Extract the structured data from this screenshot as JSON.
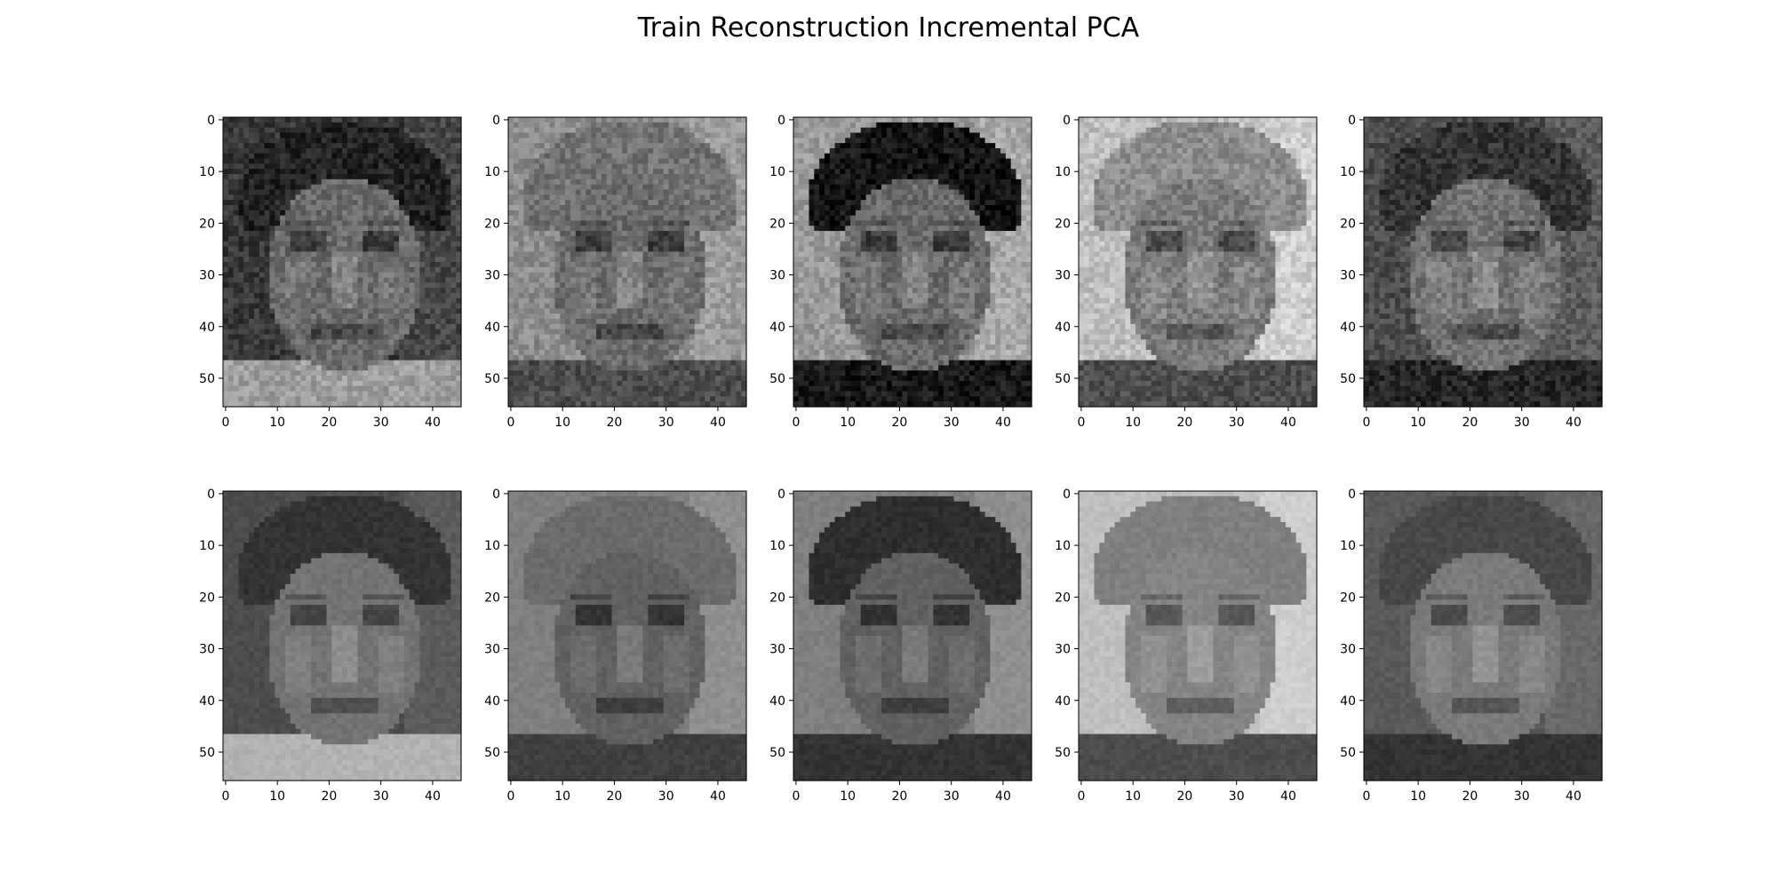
{
  "title": "Train Reconstruction Incremental PCA",
  "chart_data": [
    {
      "type": "heatmap",
      "name": "original-1",
      "row": "original",
      "image_shape": [
        56,
        46
      ],
      "colormap": "gray",
      "xlim": [
        -0.5,
        45.5
      ],
      "ylim": [
        55.5,
        -0.5
      ],
      "xticks": [
        0,
        10,
        20,
        30,
        40
      ],
      "xtick_labels": [
        "0",
        "10",
        "20",
        "30",
        "40"
      ],
      "yticks": [
        0,
        10,
        20,
        30,
        40,
        50
      ],
      "ytick_labels": [
        "0",
        "10",
        "20",
        "30",
        "40",
        "50"
      ],
      "tone": {
        "background": 0.22,
        "hair": 0.14,
        "face": 0.42,
        "clothes": 0.62,
        "blur": false
      }
    },
    {
      "type": "heatmap",
      "name": "original-2",
      "row": "original",
      "image_shape": [
        56,
        46
      ],
      "colormap": "gray",
      "xlim": [
        -0.5,
        45.5
      ],
      "ylim": [
        55.5,
        -0.5
      ],
      "xticks": [
        0,
        10,
        20,
        30,
        40
      ],
      "xtick_labels": [
        "0",
        "10",
        "20",
        "30",
        "40"
      ],
      "yticks": [
        0,
        10,
        20,
        30,
        40,
        50
      ],
      "ytick_labels": [
        "0",
        "10",
        "20",
        "30",
        "40",
        "50"
      ],
      "tone": {
        "background": 0.55,
        "hair": 0.45,
        "face": 0.42,
        "clothes": 0.3,
        "blur": false
      }
    },
    {
      "type": "heatmap",
      "name": "original-3",
      "row": "original",
      "image_shape": [
        56,
        46
      ],
      "colormap": "gray",
      "xlim": [
        -0.5,
        45.5
      ],
      "ylim": [
        55.5,
        -0.5
      ],
      "xticks": [
        0,
        10,
        20,
        30,
        40
      ],
      "xtick_labels": [
        "0",
        "10",
        "20",
        "30",
        "40"
      ],
      "yticks": [
        0,
        10,
        20,
        30,
        40,
        50
      ],
      "ytick_labels": [
        "0",
        "10",
        "20",
        "30",
        "40",
        "50"
      ],
      "tone": {
        "background": 0.6,
        "hair": 0.08,
        "face": 0.42,
        "clothes": 0.1,
        "blur": false
      }
    },
    {
      "type": "heatmap",
      "name": "original-4",
      "row": "original",
      "image_shape": [
        56,
        46
      ],
      "colormap": "gray",
      "xlim": [
        -0.5,
        45.5
      ],
      "ylim": [
        55.5,
        -0.5
      ],
      "xticks": [
        0,
        10,
        20,
        30,
        40
      ],
      "xtick_labels": [
        "0",
        "10",
        "20",
        "30",
        "40"
      ],
      "yticks": [
        0,
        10,
        20,
        30,
        40,
        50
      ],
      "ytick_labels": [
        "0",
        "10",
        "20",
        "30",
        "40",
        "50"
      ],
      "tone": {
        "background": 0.75,
        "hair": 0.55,
        "face": 0.48,
        "clothes": 0.3,
        "blur": false
      }
    },
    {
      "type": "heatmap",
      "name": "original-5",
      "row": "original",
      "image_shape": [
        56,
        46
      ],
      "colormap": "gray",
      "xlim": [
        -0.5,
        45.5
      ],
      "ylim": [
        55.5,
        -0.5
      ],
      "xticks": [
        0,
        10,
        20,
        30,
        40
      ],
      "xtick_labels": [
        "0",
        "10",
        "20",
        "30",
        "40"
      ],
      "yticks": [
        0,
        10,
        20,
        30,
        40,
        50
      ],
      "ytick_labels": [
        "0",
        "10",
        "20",
        "30",
        "40",
        "50"
      ],
      "tone": {
        "background": 0.3,
        "hair": 0.2,
        "face": 0.45,
        "clothes": 0.15,
        "blur": false
      }
    },
    {
      "type": "heatmap",
      "name": "reconstruction-1",
      "row": "reconstruction",
      "image_shape": [
        56,
        46
      ],
      "colormap": "gray",
      "xlim": [
        -0.5,
        45.5
      ],
      "ylim": [
        55.5,
        -0.5
      ],
      "xticks": [
        0,
        10,
        20,
        30,
        40
      ],
      "xtick_labels": [
        "0",
        "10",
        "20",
        "30",
        "40"
      ],
      "yticks": [
        0,
        10,
        20,
        30,
        40,
        50
      ],
      "ytick_labels": [
        "0",
        "10",
        "20",
        "30",
        "40",
        "50"
      ],
      "tone": {
        "background": 0.3,
        "hair": 0.2,
        "face": 0.45,
        "clothes": 0.7,
        "blur": true
      }
    },
    {
      "type": "heatmap",
      "name": "reconstruction-2",
      "row": "reconstruction",
      "image_shape": [
        56,
        46
      ],
      "colormap": "gray",
      "xlim": [
        -0.5,
        45.5
      ],
      "ylim": [
        55.5,
        -0.5
      ],
      "xticks": [
        0,
        10,
        20,
        30,
        40
      ],
      "xtick_labels": [
        "0",
        "10",
        "20",
        "30",
        "40"
      ],
      "yticks": [
        0,
        10,
        20,
        30,
        40,
        50
      ],
      "ytick_labels": [
        "0",
        "10",
        "20",
        "30",
        "40",
        "50"
      ],
      "tone": {
        "background": 0.5,
        "hair": 0.42,
        "face": 0.38,
        "clothes": 0.25,
        "blur": true
      }
    },
    {
      "type": "heatmap",
      "name": "reconstruction-3",
      "row": "reconstruction",
      "image_shape": [
        56,
        46
      ],
      "colormap": "gray",
      "xlim": [
        -0.5,
        45.5
      ],
      "ylim": [
        55.5,
        -0.5
      ],
      "xticks": [
        0,
        10,
        20,
        30,
        40
      ],
      "xtick_labels": [
        "0",
        "10",
        "20",
        "30",
        "40"
      ],
      "yticks": [
        0,
        10,
        20,
        30,
        40,
        50
      ],
      "ytick_labels": [
        "0",
        "10",
        "20",
        "30",
        "40",
        "50"
      ],
      "tone": {
        "background": 0.5,
        "hair": 0.18,
        "face": 0.38,
        "clothes": 0.2,
        "blur": true
      }
    },
    {
      "type": "heatmap",
      "name": "reconstruction-4",
      "row": "reconstruction",
      "image_shape": [
        56,
        46
      ],
      "colormap": "gray",
      "xlim": [
        -0.5,
        45.5
      ],
      "ylim": [
        55.5,
        -0.5
      ],
      "xticks": [
        0,
        10,
        20,
        30,
        40
      ],
      "xtick_labels": [
        "0",
        "10",
        "20",
        "30",
        "40"
      ],
      "yticks": [
        0,
        10,
        20,
        30,
        40,
        50
      ],
      "ytick_labels": [
        "0",
        "10",
        "20",
        "30",
        "40",
        "50"
      ],
      "tone": {
        "background": 0.75,
        "hair": 0.5,
        "face": 0.52,
        "clothes": 0.3,
        "blur": true
      }
    },
    {
      "type": "heatmap",
      "name": "reconstruction-5",
      "row": "reconstruction",
      "image_shape": [
        56,
        46
      ],
      "colormap": "gray",
      "xlim": [
        -0.5,
        45.5
      ],
      "ylim": [
        55.5,
        -0.5
      ],
      "xticks": [
        0,
        10,
        20,
        30,
        40
      ],
      "xtick_labels": [
        "0",
        "10",
        "20",
        "30",
        "40"
      ],
      "yticks": [
        0,
        10,
        20,
        30,
        40,
        50
      ],
      "ytick_labels": [
        "0",
        "10",
        "20",
        "30",
        "40",
        "50"
      ],
      "tone": {
        "background": 0.35,
        "hair": 0.28,
        "face": 0.48,
        "clothes": 0.2,
        "blur": true
      }
    }
  ]
}
